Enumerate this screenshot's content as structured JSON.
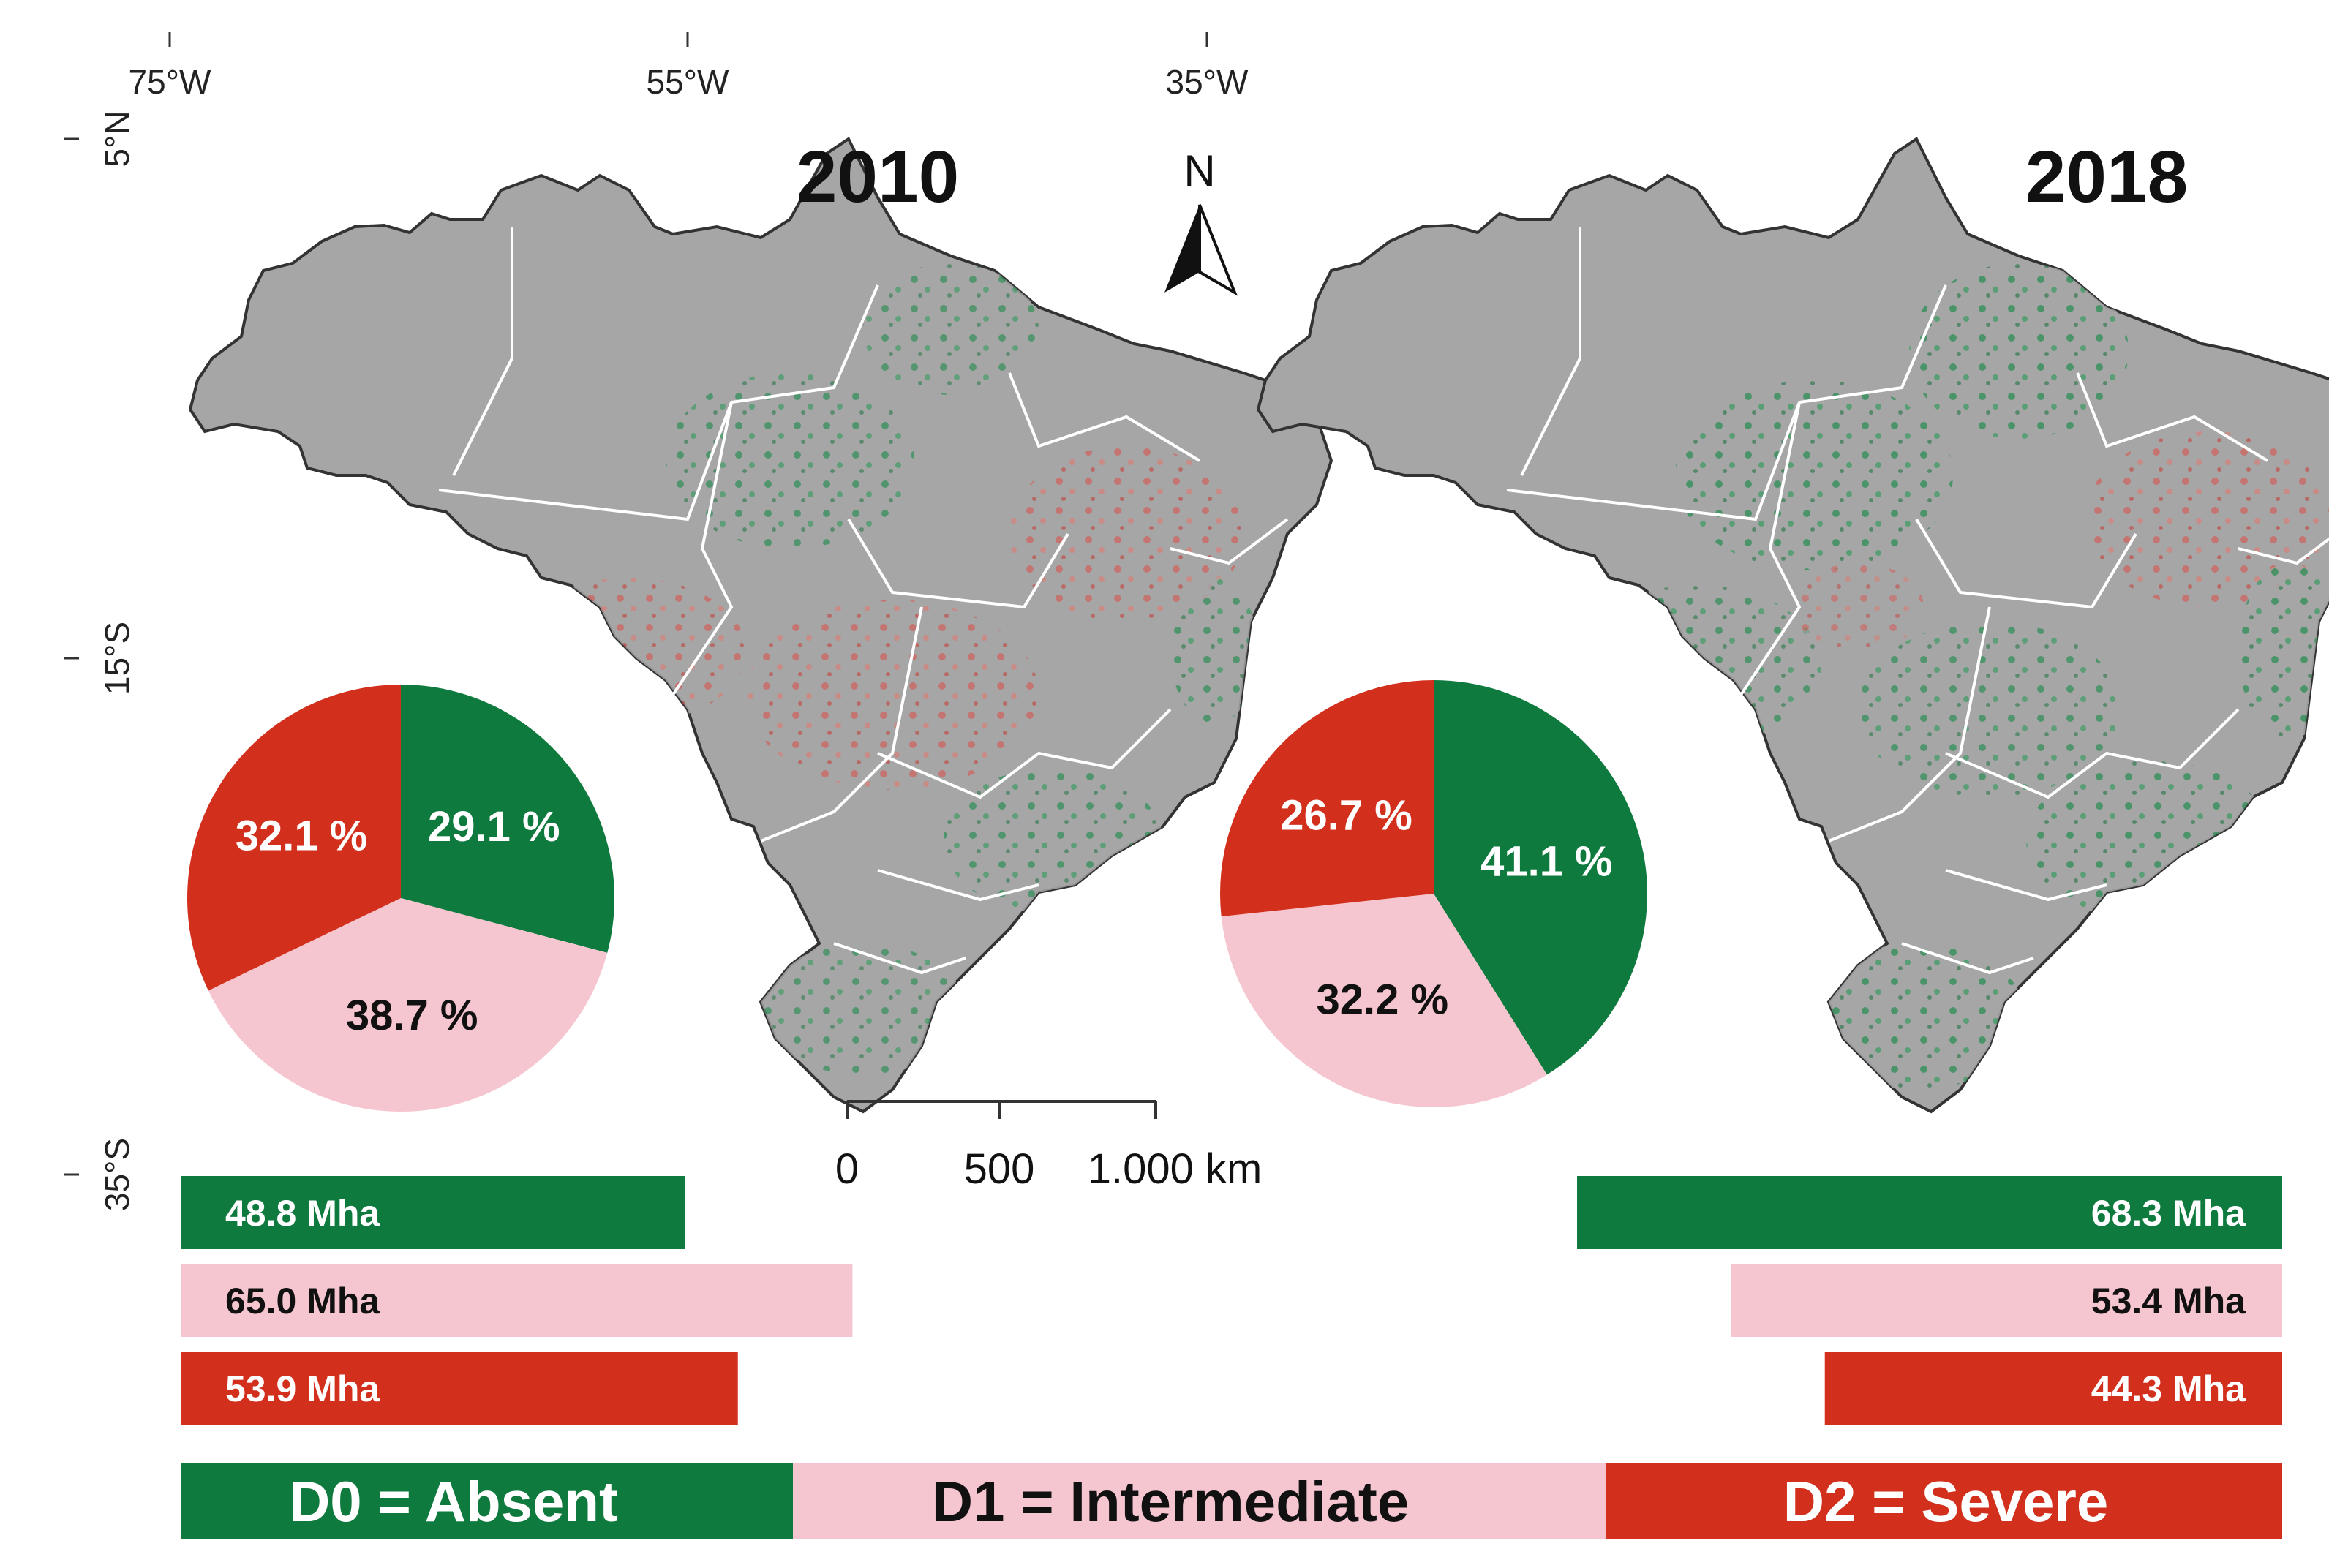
{
  "colors": {
    "absent": "#0f7a3e",
    "intermediate": "#f6c6d0",
    "severe": "#d22f1c",
    "land": "#a6a6a6",
    "border": "#ffffff",
    "text_dark": "#111111",
    "text_light": "#ffffff"
  },
  "coordinates": {
    "lon_labels": [
      "75°W",
      "55°W",
      "35°W"
    ],
    "lat_labels": [
      "5°N",
      "15°S",
      "35°S"
    ]
  },
  "north_arrow": {
    "label": "N",
    "icon": "north-arrow-icon"
  },
  "scale_bar": {
    "ticks": [
      "0",
      "500",
      "1.000 km"
    ]
  },
  "maps": [
    {
      "year": "2010",
      "pie": [
        {
          "class": "D0",
          "label": "29.1 %",
          "percent": 29.1
        },
        {
          "class": "D1",
          "label": "38.7 %",
          "percent": 38.7
        },
        {
          "class": "D2",
          "label": "32.1 %",
          "percent": 32.1
        }
      ],
      "bars": [
        {
          "class": "D0",
          "label": "48.8 Mha",
          "value": 48.8
        },
        {
          "class": "D1",
          "label": "65.0 Mha",
          "value": 65.0
        },
        {
          "class": "D2",
          "label": "53.9 Mha",
          "value": 53.9
        }
      ]
    },
    {
      "year": "2018",
      "pie": [
        {
          "class": "D0",
          "label": "41.1 %",
          "percent": 41.1
        },
        {
          "class": "D1",
          "label": "32.2 %",
          "percent": 32.2
        },
        {
          "class": "D2",
          "label": "26.7 %",
          "percent": 26.7
        }
      ],
      "bars": [
        {
          "class": "D0",
          "label": "68.3 Mha",
          "value": 68.3
        },
        {
          "class": "D1",
          "label": "53.4 Mha",
          "value": 53.4
        },
        {
          "class": "D2",
          "label": "44.3 Mha",
          "value": 44.3
        }
      ]
    }
  ],
  "legend": [
    {
      "class": "D0",
      "label": "D0 = Absent"
    },
    {
      "class": "D1",
      "label": "D1 = Intermediate"
    },
    {
      "class": "D2",
      "label": "D2 = Severe"
    }
  ]
}
